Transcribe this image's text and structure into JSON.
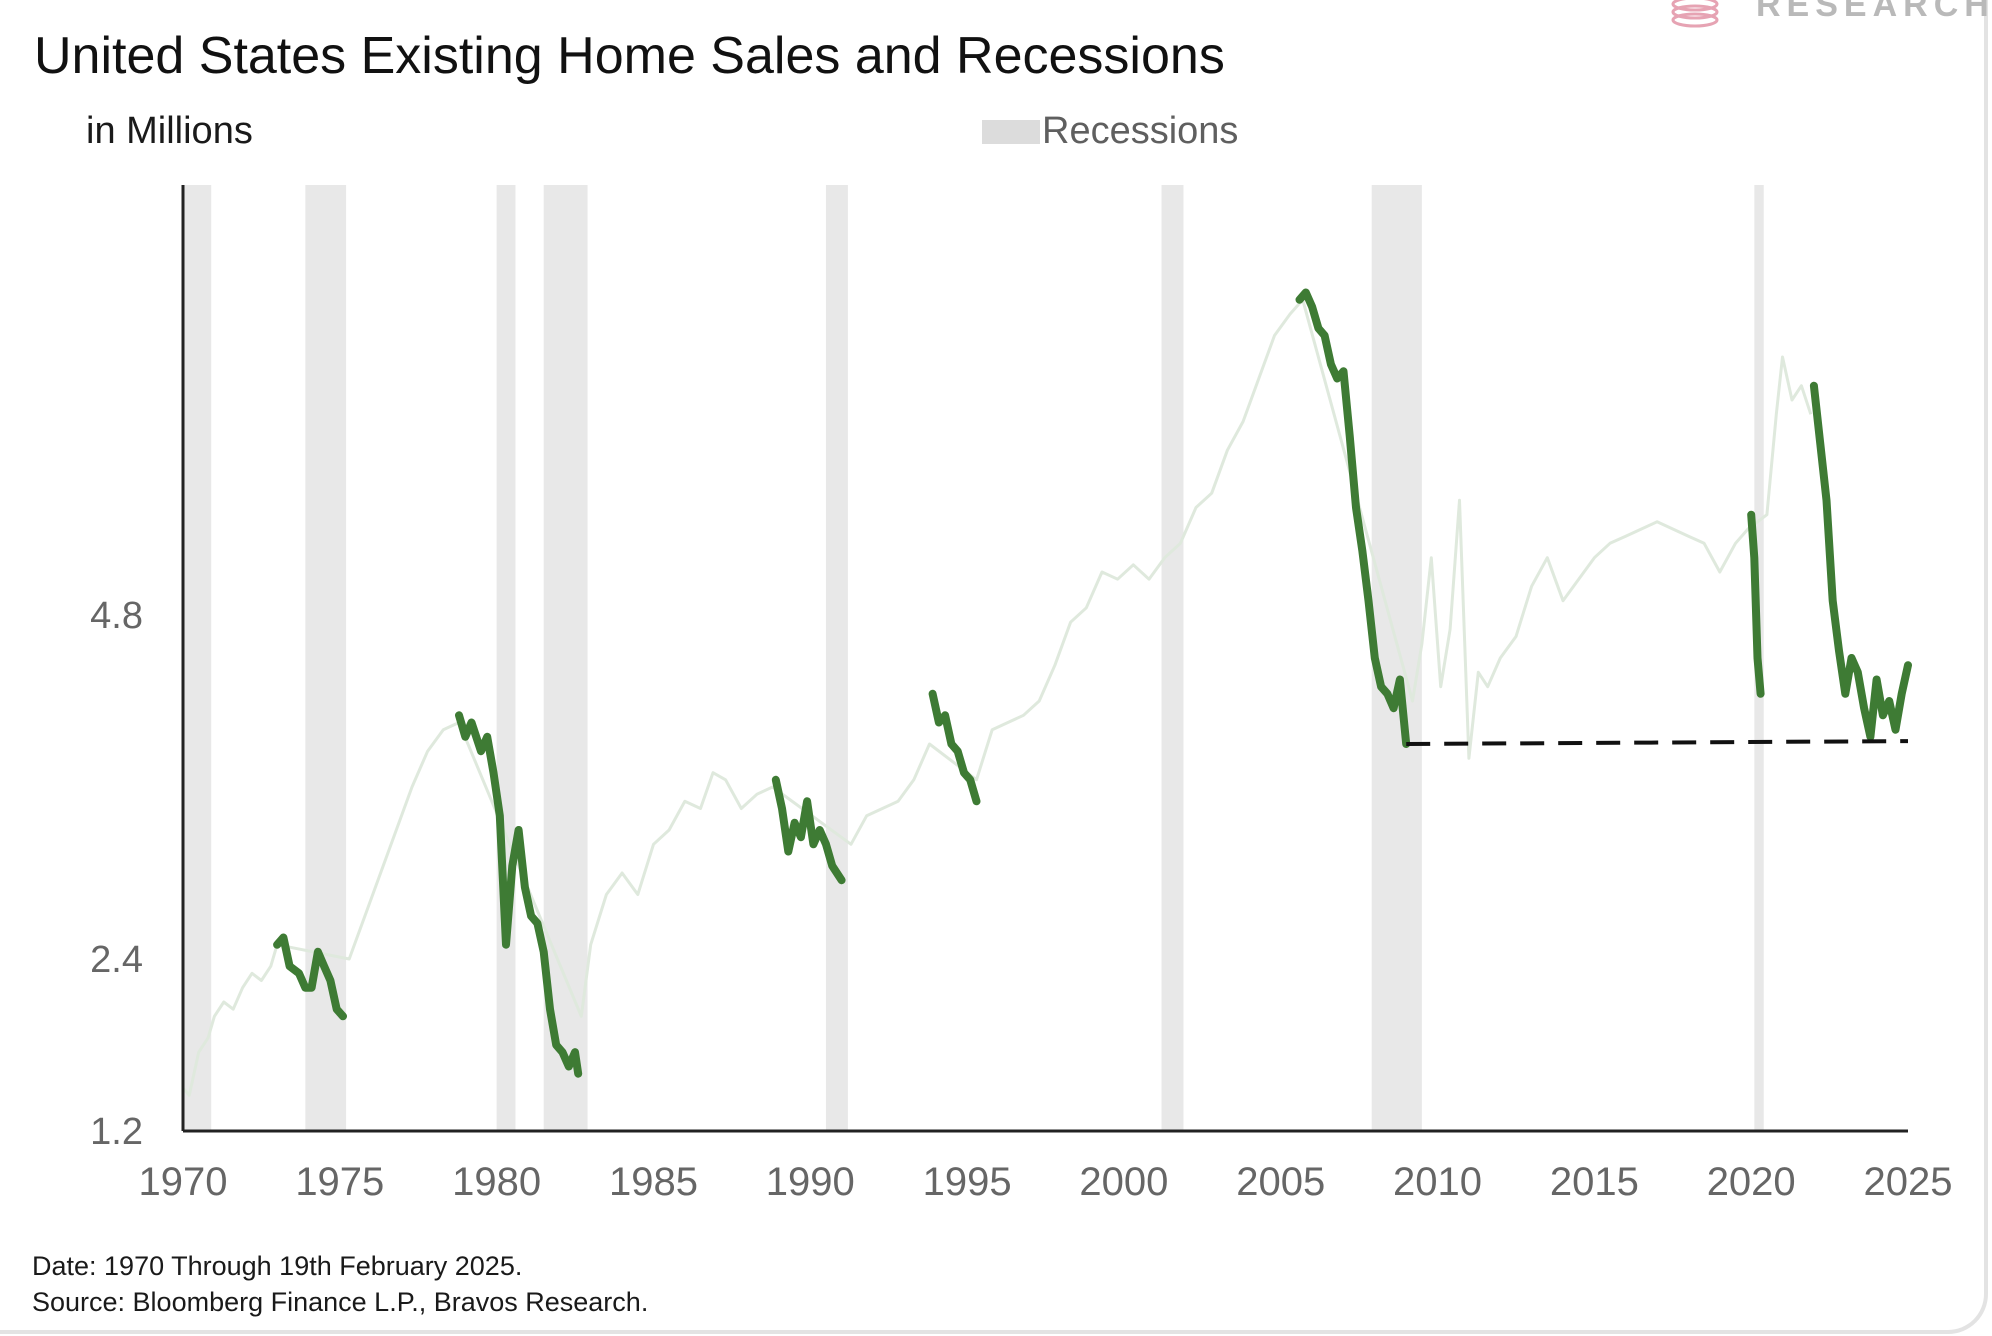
{
  "header": {
    "title": "United States Existing Home Sales and Recessions",
    "unit_label": "in Millions",
    "legend_label": "Recessions",
    "logo_text": "RESEARCH"
  },
  "footer": {
    "date_note": "Date: 1970 Through 19th February 2025.",
    "source_note": "Source: Bloomberg Finance L.P., Bravos Research."
  },
  "colors": {
    "highlight": "#3e7b34",
    "background_line": "#dfe9dd",
    "recession": "#e4e4e4",
    "support_line": "#111111",
    "axis": "#222222",
    "tick_text": "#666666"
  },
  "chart_data": {
    "type": "line",
    "title": "United States Existing Home Sales and Recessions",
    "ylabel": "in Millions",
    "xlim": [
      1970,
      2025
    ],
    "ylim": [
      1.2,
      7.8
    ],
    "y_ticks": [
      1.2,
      2.4,
      4.8
    ],
    "x_ticks": [
      1970,
      1975,
      1980,
      1985,
      1990,
      1995,
      2000,
      2005,
      2010,
      2015,
      2020,
      2025
    ],
    "grid": false,
    "legend": [
      "Recessions"
    ],
    "legend_position": "top-center",
    "recessions": [
      [
        1970.0,
        1970.9
      ],
      [
        1973.9,
        1975.2
      ],
      [
        1980.0,
        1980.6
      ],
      [
        1981.5,
        1982.9
      ],
      [
        1990.5,
        1991.2
      ],
      [
        2001.2,
        2001.9
      ],
      [
        2007.9,
        2009.5
      ],
      [
        2020.1,
        2020.4
      ]
    ],
    "series": [
      {
        "role": "context",
        "x": [
          1970.0,
          1970.2,
          1970.5,
          1970.8,
          1971.0,
          1971.3,
          1971.6,
          1971.9,
          1972.2,
          1972.5,
          1972.8,
          1973.0,
          1975.3,
          1975.8,
          1976.3,
          1976.8,
          1977.3,
          1977.8,
          1978.3,
          1978.8,
          1982.7,
          1983.0,
          1983.5,
          1984.0,
          1984.5,
          1985.0,
          1985.5,
          1986.0,
          1986.5,
          1986.9,
          1987.3,
          1987.8,
          1988.3,
          1988.8,
          1991.3,
          1991.8,
          1992.3,
          1992.8,
          1993.3,
          1993.8,
          1995.3,
          1995.8,
          1996.3,
          1996.8,
          1997.3,
          1997.8,
          1998.3,
          1998.8,
          1999.3,
          1999.8,
          2000.3,
          2000.8,
          2001.3,
          2001.8,
          2002.3,
          2002.8,
          2003.3,
          2003.8,
          2004.3,
          2004.8,
          2005.3,
          2005.7,
          2009.2,
          2009.5,
          2009.8,
          2010.1,
          2010.4,
          2010.7,
          2011.0,
          2011.3,
          2011.6,
          2012.0,
          2012.5,
          2013.0,
          2013.5,
          2014.0,
          2014.5,
          2015.0,
          2015.5,
          2016.0,
          2016.5,
          2017.0,
          2017.5,
          2018.0,
          2018.5,
          2019.0,
          2019.5,
          2019.9,
          2020.5,
          2020.8,
          2021.0,
          2021.3,
          2021.6,
          2021.9
        ],
        "values": [
          1.5,
          1.45,
          1.75,
          1.85,
          2.0,
          2.1,
          2.05,
          2.2,
          2.3,
          2.25,
          2.35,
          2.5,
          2.4,
          2.7,
          3.0,
          3.3,
          3.6,
          3.85,
          4.0,
          4.05,
          2.0,
          2.5,
          2.85,
          3.0,
          2.85,
          3.2,
          3.3,
          3.5,
          3.45,
          3.7,
          3.65,
          3.45,
          3.55,
          3.6,
          3.2,
          3.4,
          3.45,
          3.5,
          3.65,
          3.9,
          3.65,
          4.0,
          4.05,
          4.1,
          4.2,
          4.45,
          4.75,
          4.85,
          5.1,
          5.05,
          5.15,
          5.05,
          5.2,
          5.3,
          5.55,
          5.65,
          5.95,
          6.15,
          6.45,
          6.75,
          6.9,
          7.0,
          4.2,
          4.6,
          5.2,
          4.3,
          4.7,
          5.6,
          3.8,
          4.4,
          4.3,
          4.5,
          4.65,
          5.0,
          5.2,
          4.9,
          5.05,
          5.2,
          5.3,
          5.35,
          5.4,
          5.45,
          5.4,
          5.35,
          5.3,
          5.1,
          5.3,
          5.4,
          5.5,
          6.2,
          6.6,
          6.3,
          6.4,
          6.2
        ]
      },
      {
        "role": "highlight",
        "segments": [
          {
            "x": [
              1973.0,
              1973.2,
              1973.4,
              1973.7,
              1973.9,
              1974.1,
              1974.3,
              1974.5,
              1974.7,
              1974.9,
              1975.1
            ],
            "values": [
              2.5,
              2.55,
              2.35,
              2.3,
              2.2,
              2.2,
              2.45,
              2.35,
              2.25,
              2.05,
              2.0
            ]
          },
          {
            "x": [
              1978.8,
              1979.0,
              1979.2,
              1979.5,
              1979.7,
              1979.9,
              1980.1,
              1980.3,
              1980.5,
              1980.7,
              1980.9,
              1981.1,
              1981.3,
              1981.5,
              1981.7,
              1981.9,
              1982.1,
              1982.3,
              1982.5,
              1982.6
            ],
            "values": [
              4.1,
              3.95,
              4.05,
              3.85,
              3.95,
              3.7,
              3.4,
              2.5,
              3.05,
              3.3,
              2.9,
              2.7,
              2.65,
              2.45,
              2.05,
              1.8,
              1.75,
              1.65,
              1.75,
              1.6
            ]
          },
          {
            "x": [
              1988.9,
              1989.1,
              1989.3,
              1989.5,
              1989.7,
              1989.9,
              1990.1,
              1990.3,
              1990.5,
              1990.7,
              1991.0
            ],
            "values": [
              3.65,
              3.45,
              3.15,
              3.35,
              3.25,
              3.5,
              3.2,
              3.3,
              3.2,
              3.05,
              2.95
            ]
          },
          {
            "x": [
              1993.9,
              1994.1,
              1994.3,
              1994.5,
              1994.7,
              1994.9,
              1995.1,
              1995.3
            ],
            "values": [
              4.25,
              4.05,
              4.1,
              3.9,
              3.85,
              3.7,
              3.65,
              3.5
            ]
          },
          {
            "x": [
              2005.6,
              2005.8,
              2006.0,
              2006.2,
              2006.4,
              2006.6,
              2006.8,
              2007.0,
              2007.2,
              2007.4,
              2007.6,
              2007.8,
              2008.0,
              2008.2,
              2008.4,
              2008.6,
              2008.8,
              2009.0
            ],
            "values": [
              7.0,
              7.05,
              6.95,
              6.8,
              6.75,
              6.55,
              6.45,
              6.5,
              6.05,
              5.55,
              5.25,
              4.9,
              4.5,
              4.3,
              4.25,
              4.15,
              4.35,
              3.9
            ]
          },
          {
            "x": [
              2020.0,
              2020.1,
              2020.2,
              2020.3
            ],
            "values": [
              5.5,
              5.2,
              4.5,
              4.25
            ]
          },
          {
            "x": [
              2022.0,
              2022.2,
              2022.4,
              2022.6,
              2022.8,
              2023.0,
              2023.2,
              2023.4,
              2023.6,
              2023.8,
              2024.0,
              2024.2,
              2024.4,
              2024.6,
              2024.8,
              2025.0
            ],
            "values": [
              6.4,
              6.0,
              5.6,
              4.9,
              4.55,
              4.25,
              4.5,
              4.4,
              4.15,
              3.95,
              4.35,
              4.1,
              4.2,
              4.0,
              4.25,
              4.45
            ]
          }
        ]
      },
      {
        "role": "support",
        "x": [
          2009.0,
          2025.0
        ],
        "values": [
          3.9,
          3.92
        ]
      }
    ]
  }
}
